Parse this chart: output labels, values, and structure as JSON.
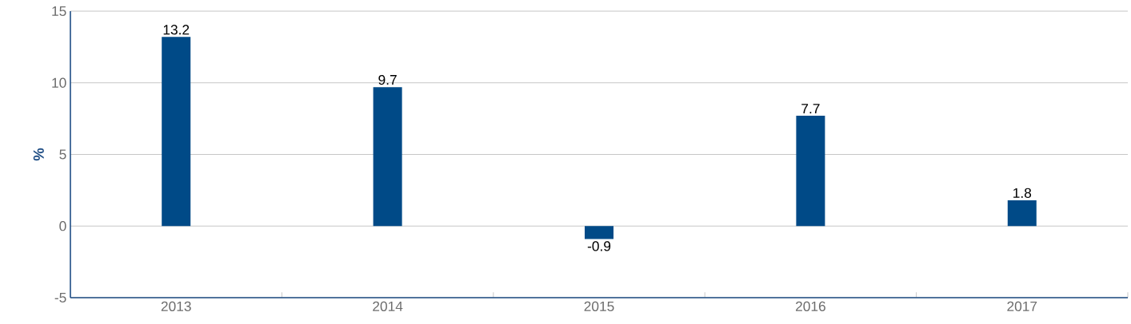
{
  "chart_data": {
    "type": "bar",
    "ylabel": "%",
    "categories": [
      "2013",
      "2014",
      "2015",
      "2016",
      "2017"
    ],
    "values": [
      13.2,
      9.7,
      -0.9,
      7.7,
      1.8
    ],
    "color": "#004a87",
    "ylim": [
      -5,
      15
    ],
    "yticks": [
      -5,
      0,
      5,
      10,
      15
    ],
    "grid": "y",
    "data_labels": true
  }
}
